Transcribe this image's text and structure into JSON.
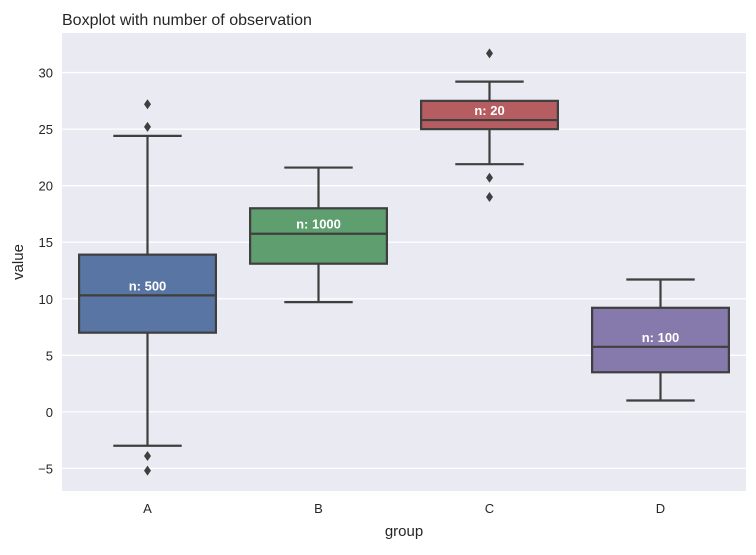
{
  "chart_data": {
    "type": "box",
    "title": "Boxplot with number of observation",
    "xlabel": "group",
    "ylabel": "value",
    "ylim": [
      -7,
      33.5
    ],
    "yticks": [
      -5,
      0,
      5,
      10,
      15,
      20,
      25,
      30
    ],
    "ytick_labels": [
      "−5",
      "0",
      "5",
      "10",
      "15",
      "20",
      "25",
      "30"
    ],
    "grid": true,
    "background": "#eaeaf2",
    "categories": [
      "A",
      "B",
      "C",
      "D"
    ],
    "boxes": [
      {
        "category": "A",
        "color": "#5975a4",
        "whisker_low": -3.0,
        "q1": 7.0,
        "median": 10.3,
        "q3": 13.9,
        "whisker_high": 24.4,
        "outliers": [
          27.2,
          25.2,
          -3.9,
          -5.2
        ],
        "label": "n: 500"
      },
      {
        "category": "B",
        "color": "#5f9e6e",
        "whisker_low": 9.7,
        "q1": 13.1,
        "median": 15.75,
        "q3": 18.0,
        "whisker_high": 21.6,
        "outliers": [],
        "label": "n: 1000"
      },
      {
        "category": "C",
        "color": "#b55d60",
        "whisker_low": 21.9,
        "q1": 25.0,
        "median": 25.8,
        "q3": 27.5,
        "whisker_high": 29.2,
        "outliers": [
          31.7,
          20.7,
          19.0
        ],
        "label": "n: 20"
      },
      {
        "category": "D",
        "color": "#857aab",
        "whisker_low": 1.0,
        "q1": 3.5,
        "median": 5.75,
        "q3": 9.2,
        "whisker_high": 11.7,
        "outliers": [],
        "label": "n: 100"
      }
    ]
  }
}
